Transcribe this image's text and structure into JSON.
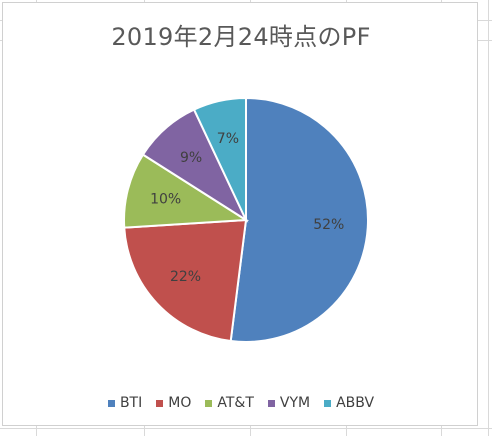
{
  "chart_data": {
    "type": "pie",
    "title": "2019年2月24時点のPF",
    "legend_position": "bottom",
    "slices": [
      {
        "name": "BTI",
        "value": 52,
        "label": "52%",
        "color": "#4f81bd"
      },
      {
        "name": "MO",
        "value": 22,
        "label": "22%",
        "color": "#c0504d"
      },
      {
        "name": "AT&T",
        "value": 10,
        "label": "10%",
        "color": "#9bbb59"
      },
      {
        "name": "VYM",
        "value": 9,
        "label": "9%",
        "color": "#8064a2"
      },
      {
        "name": "ABBV",
        "value": 7,
        "label": "7%",
        "color": "#4bacc6"
      }
    ]
  }
}
